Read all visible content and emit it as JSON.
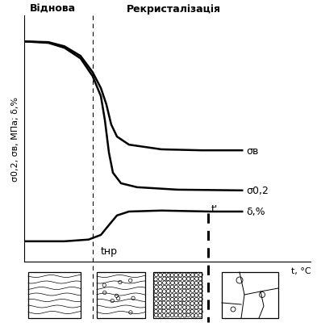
{
  "chart_data": {
    "type": "line",
    "xlabel": "t, °C",
    "ylabel": "σ0,2, σв, МПа; δ,%",
    "xlim": [
      0,
      100
    ],
    "ylim": [
      0,
      100
    ],
    "xticks": [],
    "yticks": [],
    "tick_labels": false,
    "grid": false,
    "series": [
      {
        "name": "σв",
        "color": "#000000",
        "x": [
          0,
          8.5,
          14.1,
          19.7,
          23.9,
          26.8,
          28.7,
          30.4,
          32.4,
          36.6,
          47.9,
          62.0,
          76.1
        ],
        "values": [
          89.5,
          89.2,
          87.5,
          83.6,
          77.0,
          70.5,
          63.9,
          55.7,
          50.8,
          47.5,
          45.6,
          45.2,
          45.2
        ]
      },
      {
        "name": "σ0,2",
        "color": "#000000",
        "x": [
          0,
          8.5,
          14.1,
          19.7,
          23.9,
          26.8,
          28.2,
          29.6,
          31.0,
          33.8,
          39.4,
          53.5,
          76.1
        ],
        "values": [
          89.5,
          88.9,
          86.9,
          82.6,
          75.4,
          67.2,
          57.4,
          44.3,
          36.1,
          31.8,
          30.2,
          29.2,
          28.9
        ]
      },
      {
        "name": "δ,%",
        "color": "#000000",
        "x": [
          0,
          14.1,
          22.5,
          26.8,
          29.6,
          32.4,
          36.6,
          47.9,
          64.8,
          76.1
        ],
        "values": [
          8.2,
          8.2,
          8.9,
          10.8,
          14.8,
          18.7,
          20.3,
          20.7,
          20.3,
          20.3
        ]
      }
    ],
    "vlines": [
      {
        "x": 23.9,
        "line_style": "dashed"
      },
      {
        "x": 64.2,
        "line_style": "bold_dashed"
      }
    ],
    "annotations": [
      {
        "text": "Віднова",
        "x": 9.9,
        "y": 103
      },
      {
        "text": "Рекристалізація",
        "x": 52.1,
        "y": 103
      },
      {
        "text": "tнр",
        "x": 29.6,
        "y": 4.3
      },
      {
        "text": "t'",
        "x": 66.5,
        "y": 21.5
      }
    ]
  }
}
